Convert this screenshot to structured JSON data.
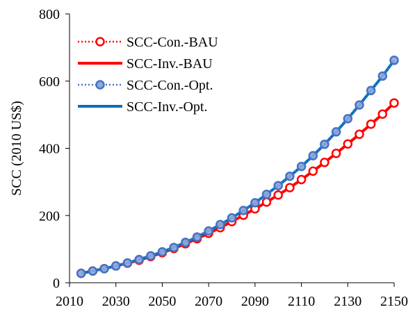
{
  "chart_data": {
    "type": "line",
    "xlabel": "",
    "ylabel": "SCC (2010 US$)",
    "xlim": [
      2010,
      2150
    ],
    "ylim": [
      0,
      800
    ],
    "xticks": [
      2010,
      2030,
      2050,
      2070,
      2090,
      2110,
      2130,
      2150
    ],
    "yticks": [
      0,
      200,
      400,
      600,
      800
    ],
    "grid": false,
    "legend_position": "top-left",
    "x": [
      2015,
      2020,
      2025,
      2030,
      2035,
      2040,
      2045,
      2050,
      2055,
      2060,
      2065,
      2070,
      2075,
      2080,
      2085,
      2090,
      2095,
      2100,
      2105,
      2110,
      2115,
      2120,
      2125,
      2130,
      2135,
      2140,
      2145,
      2150
    ],
    "series": [
      {
        "name": "SCC-Con.-BAU",
        "color": "#ff0000",
        "style": "dotted-with-circles",
        "values": [
          28,
          35,
          42,
          50,
          58,
          67,
          78,
          89,
          102,
          116,
          131,
          147,
          164,
          182,
          201,
          220,
          240,
          261,
          283,
          307,
          332,
          358,
          385,
          413,
          442,
          472,
          502,
          535
        ]
      },
      {
        "name": "SCC-Inv.-BAU",
        "color": "#ff0000",
        "style": "solid",
        "values": [
          28,
          35,
          42,
          50,
          58,
          67,
          78,
          89,
          102,
          116,
          131,
          147,
          164,
          182,
          201,
          220,
          240,
          261,
          283,
          307,
          332,
          358,
          385,
          413,
          442,
          472,
          502,
          535
        ]
      },
      {
        "name": "SCC-Con.-Opt.",
        "color": "#4472c4",
        "style": "dotted-with-circles",
        "values": [
          28,
          35,
          42,
          50,
          59,
          69,
          80,
          92,
          105,
          120,
          136,
          154,
          173,
          193,
          215,
          238,
          263,
          289,
          317,
          346,
          378,
          412,
          449,
          488,
          529,
          572,
          615,
          662
        ]
      },
      {
        "name": "SCC-Inv.-Opt.",
        "color": "#0070c0",
        "style": "solid",
        "values": [
          28,
          35,
          42,
          50,
          59,
          69,
          80,
          92,
          105,
          120,
          136,
          154,
          173,
          193,
          215,
          238,
          263,
          289,
          317,
          346,
          378,
          412,
          449,
          488,
          529,
          572,
          615,
          662
        ]
      }
    ]
  }
}
